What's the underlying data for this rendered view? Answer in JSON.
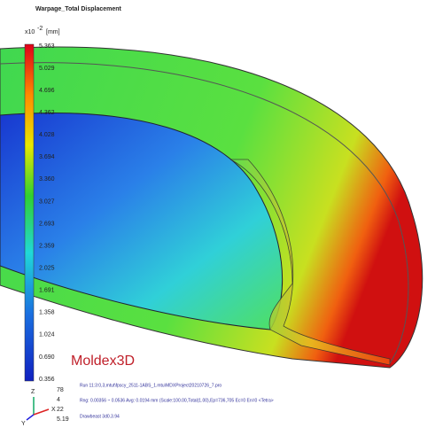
{
  "header": {
    "title": "Warpage_Total Displacement",
    "unit_base": "x10",
    "unit_exponent": "-2",
    "unit": "[mm]"
  },
  "colorbar": {
    "ticks": [
      "5.363",
      "5.029",
      "4.696",
      "4.362",
      "4.028",
      "3.694",
      "3.360",
      "3.027",
      "2.693",
      "2.359",
      "2.025",
      "1.691",
      "1.358",
      "1.024",
      "0.690",
      "0.356"
    ]
  },
  "footer": {
    "brand": "Moldex3D",
    "run": "Run 11:3:0,3,mtut\\fpscy_2511-1ABS_1.mtu\\MDXProject20210726_7.pro",
    "range": "Rng: 0.00356 ~ 0.0536  Avg: 0.0194 mm (Scale:100.00,Total(1.00),Ep=736,705 Ec=0 En=0 <Tetra>",
    "tool": "Drawbeast 3d0.3.94",
    "info": [
      "78",
      "4",
      "22",
      "5.19"
    ]
  },
  "triad": {
    "z": "Z",
    "x": "X",
    "y": "Y"
  }
}
